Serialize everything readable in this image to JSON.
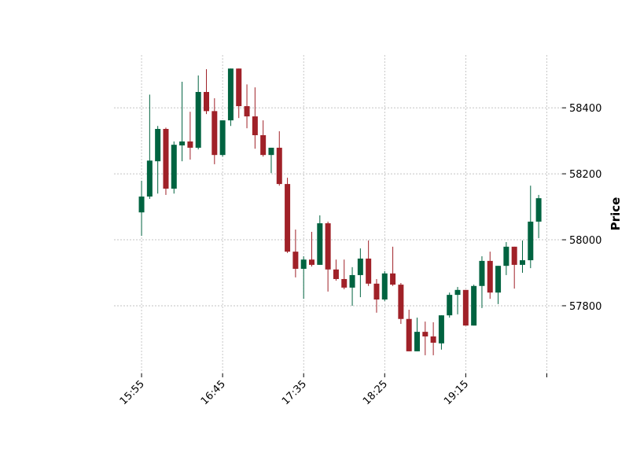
{
  "chart_data": {
    "type": "candlestick",
    "y_label": "Price",
    "up_color": "#006340",
    "down_color": "#a02128",
    "grid": true,
    "categories": [
      "15:55",
      null,
      null,
      null,
      null,
      null,
      null,
      null,
      null,
      null,
      "16:45",
      null,
      null,
      null,
      null,
      null,
      null,
      null,
      null,
      null,
      "17:35",
      null,
      null,
      null,
      null,
      null,
      null,
      null,
      null,
      null,
      "18:25",
      null,
      null,
      null,
      null,
      null,
      null,
      null,
      null,
      null,
      "19:15",
      null,
      null,
      null,
      null,
      null,
      null,
      null,
      null,
      null
    ],
    "xlim": [
      -3.4,
      51.9
    ],
    "xticks": [
      0,
      10,
      20,
      30,
      40,
      50
    ],
    "ylim": [
      57595,
      58560
    ],
    "yticks": [
      57800,
      58000,
      58200,
      58400
    ],
    "open": [
      58083,
      58131,
      58238,
      58336,
      58155,
      58286,
      58298,
      58279,
      58448,
      58390,
      58257,
      58362,
      58519,
      58405,
      58374,
      58317,
      58257,
      58279,
      58169,
      57964,
      57912,
      57940,
      57924,
      58050,
      57910,
      57881,
      57855,
      57893,
      57943,
      57867,
      57819,
      57898,
      57864,
      57760,
      57662,
      57721,
      57707,
      57686,
      57771,
      57833,
      57848,
      57740,
      57860,
      57936,
      57840,
      57921,
      57979,
      57924,
      57938,
      58055
    ],
    "high": [
      58179,
      58440,
      58345,
      58340,
      58298,
      58479,
      58388,
      58498,
      58517,
      58429,
      58362,
      58519,
      58519,
      58471,
      58462,
      58362,
      58279,
      58329,
      58188,
      58031,
      57950,
      58024,
      58074,
      58055,
      57940,
      57940,
      57917,
      57974,
      57998,
      57881,
      57905,
      57979,
      57869,
      57788,
      57764,
      57752,
      57750,
      57771,
      57840,
      57857,
      57848,
      57864,
      57950,
      57964,
      57921,
      57993,
      57979,
      57998,
      58164,
      58136
    ],
    "low": [
      58012,
      58124,
      58140,
      58136,
      58140,
      58238,
      58243,
      58274,
      58381,
      58229,
      58252,
      58345,
      58369,
      58338,
      58276,
      58252,
      58202,
      58164,
      57960,
      57886,
      57821,
      57919,
      57924,
      57843,
      57876,
      57850,
      57800,
      57826,
      57860,
      57779,
      57814,
      57860,
      57745,
      57662,
      57662,
      57650,
      57650,
      57667,
      57764,
      57774,
      57740,
      57740,
      57793,
      57821,
      57805,
      57893,
      57852,
      57900,
      57914,
      58005
    ],
    "close": [
      58131,
      58240,
      58336,
      58155,
      58288,
      58298,
      58279,
      58448,
      58390,
      58257,
      58362,
      58519,
      58405,
      58374,
      58317,
      58257,
      58279,
      58169,
      57964,
      57912,
      57940,
      57924,
      58050,
      57910,
      57881,
      57855,
      57893,
      57943,
      57867,
      57819,
      57898,
      57864,
      57760,
      57662,
      57721,
      57707,
      57688,
      57771,
      57833,
      57848,
      57740,
      57860,
      57936,
      57840,
      57921,
      57979,
      57924,
      57938,
      58055,
      58126
    ]
  }
}
